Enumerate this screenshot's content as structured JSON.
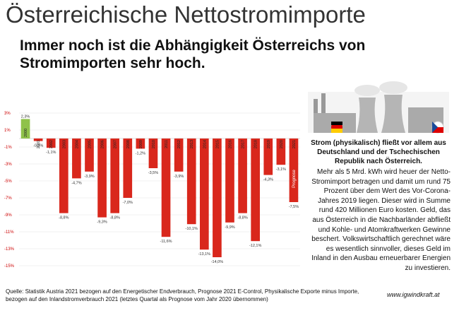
{
  "chart_data": {
    "type": "bar",
    "title": "Österreichische Nettostromimporte",
    "subtitle": "Immer noch ist die Abhängigkeit Österreichs von Stromimporten sehr hoch.",
    "categories": [
      "2000",
      "2001",
      "2002",
      "2003",
      "2004",
      "2005",
      "2006",
      "2007",
      "2008",
      "2009",
      "2010",
      "2011",
      "2012",
      "2013",
      "2014",
      "2015",
      "2016",
      "2017",
      "2018",
      "2019",
      "2020",
      "2021"
    ],
    "values": [
      2.3,
      -0.3,
      -1.1,
      -8.8,
      -4.7,
      -3.9,
      -9.3,
      -8.8,
      -7.0,
      -1.2,
      -3.5,
      -11.6,
      -3.9,
      -10.1,
      -13.1,
      -14.0,
      -9.9,
      -8.8,
      -12.1,
      -4.3,
      -3.1,
      -7.5
    ],
    "value_labels": [
      "2,3%",
      "-0,3%",
      "-1,1%",
      "-8,8%",
      "-4,7%",
      "-3,9%",
      "-9,3%",
      "-8,8%",
      "-7,0%",
      "-1,2%",
      "-3,5%",
      "-11,6%",
      "-3,9%",
      "-10,1%",
      "-13,1%",
      "-14,0%",
      "-9,9%",
      "-8,8%",
      "-12,1%",
      "-4,3%",
      "-3,1%",
      "-7,5%"
    ],
    "colors": [
      "#8fc24a",
      "#d9271c",
      "#d9271c",
      "#d9271c",
      "#d9271c",
      "#d9271c",
      "#d9271c",
      "#d9271c",
      "#d9271c",
      "#d9271c",
      "#d9271c",
      "#d9271c",
      "#d9271c",
      "#d9271c",
      "#d9271c",
      "#d9271c",
      "#d9271c",
      "#d9271c",
      "#d9271c",
      "#d9271c",
      "#d9271c",
      "#d9271c"
    ],
    "ylim": [
      -16,
      3.5
    ],
    "yticks": [
      {
        "value": 3,
        "label": "3%"
      },
      {
        "value": 1,
        "label": "1%"
      },
      {
        "value": -1,
        "label": "-1%"
      },
      {
        "value": -3,
        "label": "-3%"
      },
      {
        "value": -5,
        "label": "-5%"
      },
      {
        "value": -7,
        "label": "-7%"
      },
      {
        "value": -9,
        "label": "-9%"
      },
      {
        "value": -11,
        "label": "-11%"
      },
      {
        "value": -13,
        "label": "-13%"
      },
      {
        "value": -15,
        "label": "-15%"
      }
    ],
    "grid": true,
    "annotation": "Prognose"
  },
  "note_bold": "Strom (physikalisch) fließt vor allem aus Deutschland und der Tschechischen Republik nach Österreich.",
  "note": "Mehr als 5 Mrd. kWh wird heuer der Netto-Stromimport betragen und damit um rund 75 Prozent über dem Wert des Vor-Corona-Jahres 2019 liegen. Dieser wird in Summe rund 420 Millionen Euro kosten. Geld, das aus Österreich in die Nachbarländer abfließt und Kohle- und Atomkraftwerken Gewinne beschert. Volkswirtschaftlich gerechnet wäre es wesentlich sinnvoller, dieses Geld im Inland in den Ausbau erneuerbarer Energien zu investieren.",
  "source": "Quelle: Statistik Austria 2021 bezogen auf den Energetischer Endverbrauch, Prognose 2021 E-Control, Physikalische Exporte minus Importe, bezogen auf den Inlandstromverbrauch 2021 (letztes Quartal als Prognose vom Jahr 2020 übernommen)",
  "website": "www.igwindkraft.at"
}
